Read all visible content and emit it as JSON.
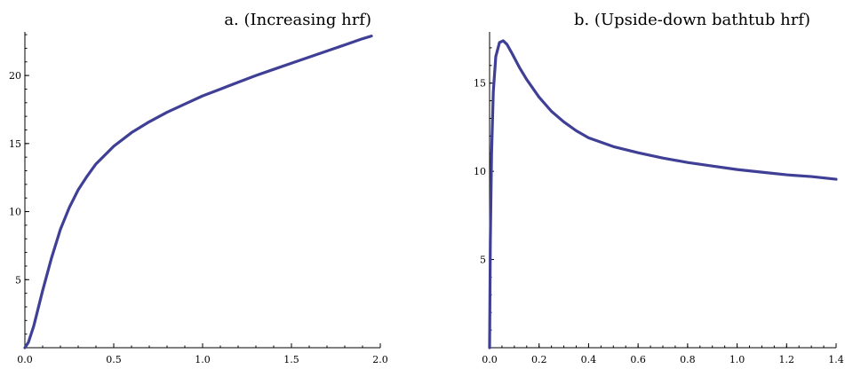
{
  "chart_data": [
    {
      "type": "line",
      "title": "a. (Increasing hrf)",
      "xlabel": "",
      "ylabel": "",
      "xlim": [
        0,
        2.0
      ],
      "ylim": [
        0,
        23.2
      ],
      "xticks": [
        0.0,
        0.5,
        1.0,
        1.5,
        2.0
      ],
      "xtick_labels": [
        "0.0",
        "0.5",
        "1.0",
        "1.5",
        "2.0"
      ],
      "yticks": [
        5,
        10,
        15,
        20
      ],
      "ytick_labels": [
        "5",
        "10",
        "15",
        "20"
      ],
      "grid": false,
      "color": "#3f3f96",
      "series": [
        {
          "x": [
            0,
            0.02,
            0.05,
            0.1,
            0.15,
            0.2,
            0.25,
            0.3,
            0.35,
            0.4,
            0.5,
            0.6,
            0.7,
            0.8,
            0.9,
            1.0,
            1.1,
            1.2,
            1.3,
            1.4,
            1.5,
            1.6,
            1.7,
            1.8,
            1.9,
            1.95
          ],
          "y": [
            0,
            0.4,
            1.6,
            4.2,
            6.6,
            8.7,
            10.3,
            11.6,
            12.6,
            13.5,
            14.8,
            15.8,
            16.6,
            17.3,
            17.9,
            18.5,
            19.0,
            19.5,
            20.0,
            20.45,
            20.9,
            21.35,
            21.8,
            22.25,
            22.7,
            22.9
          ]
        }
      ]
    },
    {
      "type": "line",
      "title": "b. (Upside-down bathtub hrf)",
      "xlabel": "",
      "ylabel": "",
      "xlim": [
        0,
        1.4
      ],
      "ylim": [
        0,
        17.9
      ],
      "xticks": [
        0.0,
        0.2,
        0.4,
        0.6,
        0.8,
        1.0,
        1.2,
        1.4
      ],
      "xtick_labels": [
        "0.0",
        "0.2",
        "0.4",
        "0.6",
        "0.8",
        "1.0",
        "1.2",
        "1.4"
      ],
      "yticks": [
        5,
        10,
        15
      ],
      "ytick_labels": [
        "5",
        "10",
        "15"
      ],
      "grid": false,
      "color": "#3f3f96",
      "series": [
        {
          "x": [
            0,
            0.003,
            0.008,
            0.015,
            0.025,
            0.04,
            0.055,
            0.07,
            0.09,
            0.12,
            0.15,
            0.2,
            0.25,
            0.3,
            0.35,
            0.4,
            0.5,
            0.6,
            0.7,
            0.8,
            0.9,
            1.0,
            1.1,
            1.2,
            1.3,
            1.4
          ],
          "y": [
            0,
            6.0,
            11.0,
            14.5,
            16.5,
            17.3,
            17.4,
            17.2,
            16.7,
            15.9,
            15.2,
            14.2,
            13.4,
            12.8,
            12.3,
            11.9,
            11.4,
            11.05,
            10.75,
            10.5,
            10.3,
            10.1,
            9.95,
            9.8,
            9.7,
            9.55
          ]
        }
      ]
    }
  ]
}
